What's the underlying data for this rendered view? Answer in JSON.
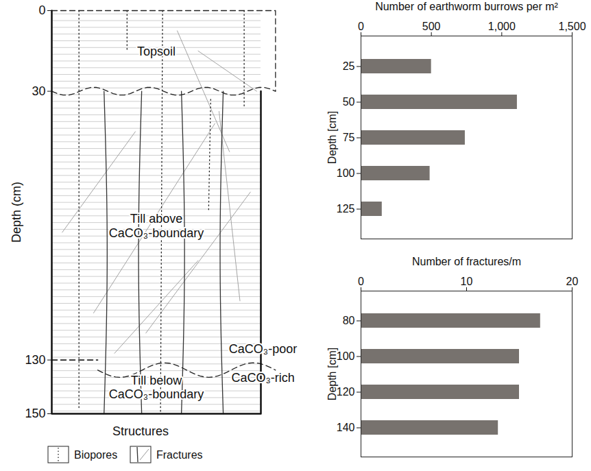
{
  "chart_data": [
    {
      "type": "bar",
      "orientation": "horizontal",
      "title": "Number of earthworm burrows per m²",
      "ylabel": "Depth [cm]",
      "categories": [
        25,
        50,
        75,
        100,
        125
      ],
      "values": [
        500,
        1110,
        740,
        490,
        150
      ],
      "color": "#77726e",
      "xlim": [
        0,
        1500
      ],
      "xticks": [
        0,
        500,
        1000,
        1500
      ]
    },
    {
      "type": "bar",
      "orientation": "horizontal",
      "title": "Number of fractures/m",
      "ylabel": "Depth [cm]",
      "categories": [
        80,
        100,
        120,
        140
      ],
      "values": [
        17,
        15,
        15,
        13
      ],
      "color": "#77726e",
      "xlim": [
        0,
        20
      ],
      "xticks": [
        0,
        10,
        20
      ]
    }
  ],
  "diagram": {
    "ylabel": "Depth (cm)",
    "ylim": [
      0,
      150
    ],
    "yticks": [
      0,
      30,
      130,
      150
    ],
    "layers": [
      {
        "label": "Topsoil",
        "top": 0,
        "bottom": 30
      },
      {
        "label": "Till above\nCaCO₃-boundary",
        "top": 30,
        "bottom": 130
      },
      {
        "label": "Till below\nCaCO₃-boundary",
        "top": 130,
        "bottom": 150
      }
    ],
    "boundary_labels": {
      "above": "CaCO₃-poor",
      "below": "CaCO₃-rich"
    },
    "legend_title": "Structures",
    "legend_items": [
      "Biopores",
      "Fractures"
    ]
  }
}
